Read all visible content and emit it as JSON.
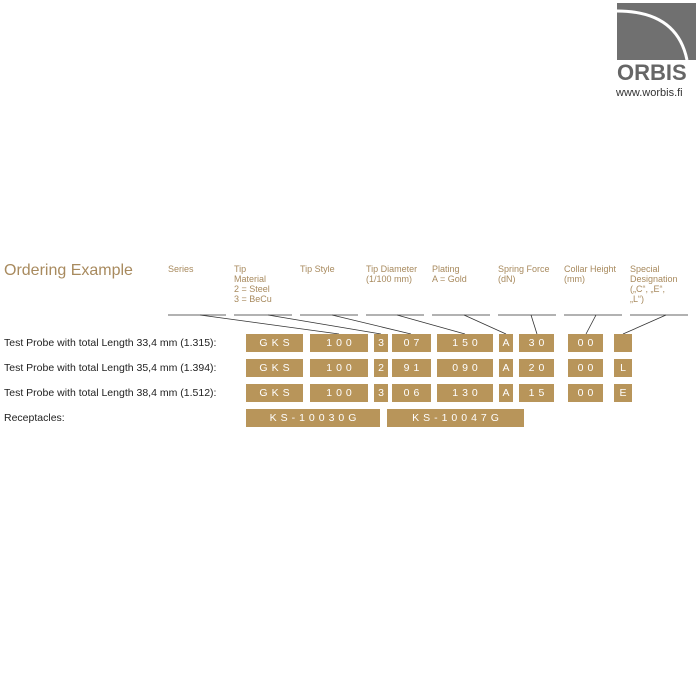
{
  "logo": {
    "name": "ORBIS",
    "url": "www.worbis.fi"
  },
  "title": "Ordering Example",
  "headers": [
    "Series",
    "Tip\nMaterial\n2 = Steel\n3 = BeCu",
    "Tip Style",
    "Tip Diameter\n(1/100 mm)",
    "Plating\nA = Gold",
    "Spring Force\n(dN)",
    "Collar Height\n(mm)",
    "Special\nDesignation\n(„C“, „E“,\n„L“)"
  ],
  "rows": [
    {
      "label": "Test Probe with total Length 33,4 mm (1.315):",
      "codes": [
        "GKS",
        "100",
        "3",
        "07",
        "150",
        "A",
        "30",
        "00",
        ""
      ]
    },
    {
      "label": "Test Probe with total Length 35,4 mm (1.394):",
      "codes": [
        "GKS",
        "100",
        "2",
        "91",
        "090",
        "A",
        "20",
        "00",
        "L"
      ]
    },
    {
      "label": "Test Probe with total Length 38,4 mm (1.512):",
      "codes": [
        "GKS",
        "100",
        "3",
        "06",
        "130",
        "A",
        "15",
        "00",
        "E"
      ]
    }
  ],
  "receptacles": {
    "label": "Receptacles:",
    "codes": [
      "KS-10030G",
      "KS-10047G"
    ]
  },
  "colors": {
    "gold": "#b8955a",
    "heading": "#a88a5e"
  }
}
